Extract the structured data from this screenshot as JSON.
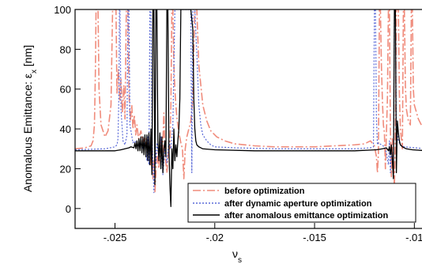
{
  "chart_data": {
    "type": "line",
    "xlabel": "ν",
    "xlabel_sub": "s",
    "ylabel": "Anomalous Emittance: ε",
    "ylabel_sub": "x",
    "ylabel_unit": " [nm]",
    "xlim": [
      -0.027,
      -0.0093
    ],
    "ylim": [
      -10,
      100
    ],
    "xticks": [
      -0.025,
      -0.02,
      -0.015,
      -0.01
    ],
    "xtick_labels": [
      "-.025",
      "-.02",
      "-.015",
      "-.01"
    ],
    "yticks": [
      0,
      20,
      40,
      60,
      80,
      100
    ],
    "ytick_labels": [
      "0",
      "20",
      "40",
      "60",
      "80",
      "100"
    ],
    "grid": false,
    "legend_position": "bottom-right",
    "series": [
      {
        "name": "before optimization",
        "color": "#f08c7c",
        "style": "long-dash",
        "points": [
          [
            -0.027,
            30
          ],
          [
            -0.0265,
            30.5
          ],
          [
            -0.0262,
            31.5
          ],
          [
            -0.0261,
            34
          ],
          [
            -0.02603,
            42
          ],
          [
            -0.02598,
            70
          ],
          [
            -0.02595,
            100
          ],
          [
            -0.02585,
            100
          ],
          [
            -0.0258,
            60
          ],
          [
            -0.0257,
            42
          ],
          [
            -0.0255,
            36
          ],
          [
            -0.02535,
            39
          ],
          [
            -0.0252,
            52
          ],
          [
            -0.02512,
            100
          ],
          [
            -0.02495,
            100
          ],
          [
            -0.0249,
            58
          ],
          [
            -0.02483,
            70
          ],
          [
            -0.02476,
            54
          ],
          [
            -0.0247,
            65
          ],
          [
            -0.02463,
            48
          ],
          [
            -0.02456,
            62
          ],
          [
            -0.0245,
            45
          ],
          [
            -0.02443,
            100
          ],
          [
            -0.02435,
            100
          ],
          [
            -0.0243,
            58
          ],
          [
            -0.02423,
            44
          ],
          [
            -0.02416,
            52
          ],
          [
            -0.0241,
            40
          ],
          [
            -0.02403,
            47
          ],
          [
            -0.02396,
            37
          ],
          [
            -0.0239,
            42
          ],
          [
            -0.02382,
            35
          ],
          [
            -0.0237,
            39
          ],
          [
            -0.0236,
            33
          ],
          [
            -0.0235,
            36
          ],
          [
            -0.0234,
            31
          ],
          [
            -0.0233,
            36
          ],
          [
            -0.02322,
            22
          ],
          [
            -0.02315,
            37
          ],
          [
            -0.0231,
            15
          ],
          [
            -0.02303,
            25
          ],
          [
            -0.023,
            8
          ],
          [
            -0.0229,
            28
          ],
          [
            -0.0228,
            20
          ],
          [
            -0.0227,
            35
          ],
          [
            -0.02262,
            28
          ],
          [
            -0.02255,
            48
          ],
          [
            -0.0225,
            28
          ],
          [
            -0.0224,
            18
          ],
          [
            -0.0223,
            32
          ],
          [
            -0.02225,
            30
          ],
          [
            -0.0222,
            52
          ],
          [
            -0.02215,
            100
          ],
          [
            -0.0221,
            100
          ],
          [
            -0.02205,
            72
          ],
          [
            -0.022,
            60
          ],
          [
            -0.02195,
            52
          ],
          [
            -0.0219,
            46
          ],
          [
            -0.0218,
            38
          ],
          [
            -0.0217,
            33
          ],
          [
            -0.02162,
            30
          ],
          [
            -0.02155,
            15
          ],
          [
            -0.02148,
            30
          ],
          [
            -0.0214,
            36
          ],
          [
            -0.0212,
            44
          ],
          [
            -0.0211,
            55
          ],
          [
            -0.021,
            100
          ],
          [
            -0.0209,
            100
          ],
          [
            -0.0208,
            72
          ],
          [
            -0.0206,
            52
          ],
          [
            -0.0204,
            44
          ],
          [
            -0.0202,
            39
          ],
          [
            -0.0199,
            36
          ],
          [
            -0.0195,
            34
          ],
          [
            -0.019,
            32.5
          ],
          [
            -0.018,
            31.5
          ],
          [
            -0.017,
            31
          ],
          [
            -0.016,
            31
          ],
          [
            -0.015,
            31
          ],
          [
            -0.014,
            31.5
          ],
          [
            -0.013,
            32
          ],
          [
            -0.0125,
            32.5
          ],
          [
            -0.0122,
            34
          ],
          [
            -0.012,
            31.5
          ],
          [
            -0.0119,
            26
          ],
          [
            -0.01185,
            18
          ],
          [
            -0.0118,
            28
          ],
          [
            -0.01175,
            100
          ],
          [
            -0.0117,
            100
          ],
          [
            -0.01165,
            72
          ],
          [
            -0.0116,
            54
          ],
          [
            -0.01155,
            42
          ],
          [
            -0.0115,
            38
          ],
          [
            -0.01145,
            20
          ],
          [
            -0.0114,
            38
          ],
          [
            -0.01135,
            55
          ],
          [
            -0.0113,
            100
          ],
          [
            -0.01125,
            100
          ],
          [
            -0.0112,
            40
          ],
          [
            -0.01115,
            16
          ],
          [
            -0.0111,
            35
          ],
          [
            -0.01105,
            22
          ],
          [
            -0.011,
            10
          ],
          [
            -0.01095,
            40
          ],
          [
            -0.0109,
            100
          ],
          [
            -0.0108,
            100
          ],
          [
            -0.01075,
            58
          ],
          [
            -0.0107,
            40
          ],
          [
            -0.0106,
            30
          ],
          [
            -0.01055,
            100
          ],
          [
            -0.0105,
            100
          ],
          [
            -0.01045,
            62
          ],
          [
            -0.0104,
            50
          ],
          [
            -0.0103,
            44
          ],
          [
            -0.0102,
            42
          ],
          [
            -0.01015,
            100
          ],
          [
            -0.0101,
            100
          ],
          [
            -0.01005,
            60
          ],
          [
            -0.01,
            52
          ],
          [
            -0.0098,
            45
          ],
          [
            -0.0096,
            41
          ],
          [
            -0.0093,
            38
          ]
        ]
      },
      {
        "name": "after dynamic aperture optimization",
        "color": "#5a6ad8",
        "style": "dotted",
        "points": [
          [
            -0.027,
            29.5
          ],
          [
            -0.0255,
            30
          ],
          [
            -0.025,
            31
          ],
          [
            -0.0249,
            32
          ],
          [
            -0.02485,
            35
          ],
          [
            -0.0248,
            60
          ],
          [
            -0.02478,
            100
          ],
          [
            -0.02475,
            100
          ],
          [
            -0.0247,
            50
          ],
          [
            -0.0246,
            34
          ],
          [
            -0.0245,
            32
          ],
          [
            -0.0244,
            37
          ],
          [
            -0.02435,
            100
          ],
          [
            -0.0243,
            100
          ],
          [
            -0.02425,
            42
          ],
          [
            -0.0241,
            33
          ],
          [
            -0.024,
            34
          ],
          [
            -0.02385,
            31
          ],
          [
            -0.0237,
            33
          ],
          [
            -0.0236,
            30
          ],
          [
            -0.0235,
            34
          ],
          [
            -0.0234,
            24
          ],
          [
            -0.02335,
            36
          ],
          [
            -0.0233,
            22
          ],
          [
            -0.02325,
            100
          ],
          [
            -0.0232,
            100
          ],
          [
            -0.02315,
            38
          ],
          [
            -0.0231,
            24
          ],
          [
            -0.02305,
            8
          ],
          [
            -0.023,
            36
          ],
          [
            -0.02295,
            22
          ],
          [
            -0.0229,
            33
          ],
          [
            -0.0228,
            26
          ],
          [
            -0.0227,
            36
          ],
          [
            -0.0226,
            17
          ],
          [
            -0.0225,
            30
          ],
          [
            -0.0224,
            23
          ],
          [
            -0.0223,
            34
          ],
          [
            -0.0222,
            30
          ],
          [
            -0.0221,
            42
          ],
          [
            -0.02205,
            70
          ],
          [
            -0.022,
            100
          ],
          [
            -0.0213,
            100
          ],
          [
            -0.0212,
            100
          ],
          [
            -0.02115,
            18
          ],
          [
            -0.0211,
            100
          ],
          [
            -0.021,
            100
          ],
          [
            -0.0209,
            78
          ],
          [
            -0.0208,
            52
          ],
          [
            -0.0207,
            42
          ],
          [
            -0.0206,
            37
          ],
          [
            -0.0204,
            34
          ],
          [
            -0.0202,
            32
          ],
          [
            -0.02,
            31
          ],
          [
            -0.019,
            30.5
          ],
          [
            -0.017,
            30
          ],
          [
            -0.015,
            30
          ],
          [
            -0.013,
            30
          ],
          [
            -0.0122,
            30.5
          ],
          [
            -0.01205,
            31
          ],
          [
            -0.012,
            100
          ],
          [
            -0.01195,
            100
          ],
          [
            -0.0119,
            45
          ],
          [
            -0.01185,
            32
          ],
          [
            -0.0118,
            33
          ],
          [
            -0.0115,
            31
          ],
          [
            -0.0114,
            28
          ],
          [
            -0.0113,
            22
          ],
          [
            -0.01125,
            34
          ],
          [
            -0.0112,
            18
          ],
          [
            -0.01115,
            30
          ],
          [
            -0.0111,
            23
          ],
          [
            -0.01105,
            27
          ],
          [
            -0.011,
            100
          ],
          [
            -0.01095,
            100
          ],
          [
            -0.0109,
            40
          ],
          [
            -0.0108,
            34
          ],
          [
            -0.0107,
            32
          ],
          [
            -0.0105,
            31
          ],
          [
            -0.01,
            30.5
          ],
          [
            -0.0093,
            30
          ]
        ]
      },
      {
        "name": "after anomalous emittance optimization",
        "color": "#000000",
        "style": "solid",
        "points": [
          [
            -0.027,
            29
          ],
          [
            -0.025,
            29
          ],
          [
            -0.0247,
            29.5
          ],
          [
            -0.0245,
            30
          ],
          [
            -0.0243,
            30.5
          ],
          [
            -0.0242,
            31
          ],
          [
            -0.02405,
            30.5
          ],
          [
            -0.024,
            33
          ],
          [
            -0.02395,
            30
          ],
          [
            -0.0239,
            34
          ],
          [
            -0.02385,
            29
          ],
          [
            -0.0238,
            35
          ],
          [
            -0.02375,
            29
          ],
          [
            -0.0237,
            36
          ],
          [
            -0.02365,
            28
          ],
          [
            -0.0236,
            36
          ],
          [
            -0.02355,
            27
          ],
          [
            -0.0235,
            37
          ],
          [
            -0.02345,
            26
          ],
          [
            -0.0234,
            37
          ],
          [
            -0.02335,
            24
          ],
          [
            -0.0233,
            38
          ],
          [
            -0.02325,
            22
          ],
          [
            -0.0232,
            40
          ],
          [
            -0.02315,
            17
          ],
          [
            -0.0231,
            100
          ],
          [
            -0.02305,
            100
          ],
          [
            -0.023,
            12
          ],
          [
            -0.02295,
            100
          ],
          [
            -0.0229,
            100
          ],
          [
            -0.02285,
            34
          ],
          [
            -0.0228,
            24
          ],
          [
            -0.02275,
            38
          ],
          [
            -0.0227,
            20
          ],
          [
            -0.02265,
            36
          ],
          [
            -0.0226,
            18
          ],
          [
            -0.02255,
            30
          ],
          [
            -0.0225,
            34
          ],
          [
            -0.02245,
            26
          ],
          [
            -0.0224,
            100
          ],
          [
            -0.02235,
            100
          ],
          [
            -0.0223,
            32
          ],
          [
            -0.02225,
            12
          ],
          [
            -0.0222,
            1
          ],
          [
            -0.02215,
            30
          ],
          [
            -0.0221,
            20
          ],
          [
            -0.02205,
            40
          ],
          [
            -0.022,
            24
          ],
          [
            -0.02195,
            32
          ],
          [
            -0.0219,
            26
          ],
          [
            -0.02185,
            34
          ],
          [
            -0.0218,
            40
          ],
          [
            -0.02175,
            55
          ],
          [
            -0.0217,
            100
          ],
          [
            -0.0212,
            100
          ],
          [
            -0.0211,
            90
          ],
          [
            -0.02105,
            55
          ],
          [
            -0.021,
            40
          ],
          [
            -0.02095,
            34
          ],
          [
            -0.0209,
            32
          ],
          [
            -0.0208,
            31
          ],
          [
            -0.0206,
            30
          ],
          [
            -0.02,
            29.5
          ],
          [
            -0.018,
            29
          ],
          [
            -0.015,
            29
          ],
          [
            -0.013,
            29
          ],
          [
            -0.0119,
            29.5
          ],
          [
            -0.0116,
            30
          ],
          [
            -0.0114,
            30.5
          ],
          [
            -0.0113,
            29
          ],
          [
            -0.01125,
            31
          ],
          [
            -0.0112,
            27
          ],
          [
            -0.01115,
            32
          ],
          [
            -0.0111,
            24
          ],
          [
            -0.01105,
            15
          ],
          [
            -0.011,
            100
          ],
          [
            -0.01095,
            100
          ],
          [
            -0.0109,
            18
          ],
          [
            -0.01085,
            44
          ],
          [
            -0.0108,
            38
          ],
          [
            -0.01075,
            34
          ],
          [
            -0.0107,
            32
          ],
          [
            -0.0106,
            31
          ],
          [
            -0.0104,
            30
          ],
          [
            -0.0101,
            29.5
          ],
          [
            -0.0093,
            29
          ]
        ]
      }
    ]
  }
}
